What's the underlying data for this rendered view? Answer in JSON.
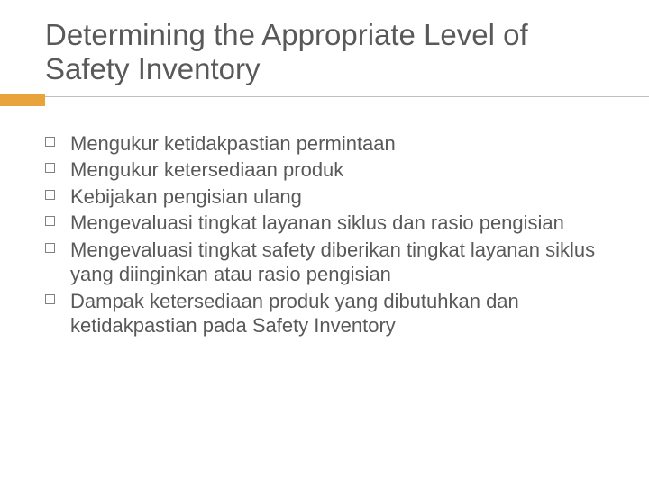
{
  "title": "Determining the Appropriate Level of Safety Inventory",
  "accent_color": "#e8a33d",
  "line_color": "#bfbfbf",
  "text_color": "#595959",
  "title_fontsize": 33,
  "bullet_fontsize": 22,
  "bullet_marker_border": "#808080",
  "bullets": [
    "Mengukur ketidakpastian permintaan",
    "Mengukur ketersediaan produk",
    "Kebijakan pengisian ulang",
    "Mengevaluasi tingkat layanan siklus dan rasio pengisian",
    "Mengevaluasi tingkat safety diberikan tingkat layanan siklus yang diinginkan atau rasio pengisian",
    "Dampak ketersediaan produk yang dibutuhkan dan ketidakpastian pada Safety Inventory"
  ]
}
